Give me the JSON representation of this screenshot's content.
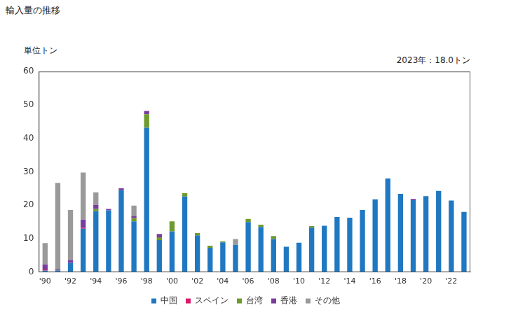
{
  "chart_data": {
    "type": "bar",
    "title": "輸入量の推移",
    "ylabel": "単位トン",
    "annotation": "2023年：18.0トン",
    "categories": [
      "'90",
      null,
      "'92",
      null,
      "'94",
      null,
      "'96",
      null,
      "'98",
      null,
      "'00",
      null,
      "'02",
      null,
      "'04",
      null,
      "'06",
      null,
      "'08",
      null,
      "'10",
      null,
      "'12",
      null,
      "'14",
      null,
      "'16",
      null,
      "'18",
      null,
      "'20",
      null,
      "'22",
      null
    ],
    "series": [
      {
        "name": "中国",
        "color": "#1f78c1",
        "values": [
          0.5,
          0.5,
          2.8,
          13.0,
          18.2,
          18.5,
          24.5,
          15.2,
          43.2,
          9.6,
          12.2,
          22.6,
          11.0,
          7.3,
          8.9,
          8.2,
          15.0,
          13.5,
          9.9,
          7.6,
          8.8,
          13.3,
          13.9,
          16.5,
          16.3,
          18.6,
          21.8,
          28.0,
          23.4,
          21.5,
          22.7,
          24.3,
          21.4,
          18.0
        ]
      },
      {
        "name": "スペイン",
        "color": "#d81b6a",
        "values": [
          0.3,
          0,
          0,
          0.3,
          0,
          0,
          0,
          0,
          0,
          0,
          0,
          0,
          0,
          0,
          0,
          0,
          0,
          0,
          0,
          0,
          0,
          0,
          0,
          0,
          0,
          0,
          0,
          0,
          0,
          0,
          0,
          0,
          0,
          0
        ]
      },
      {
        "name": "台湾",
        "color": "#6e9a2e",
        "values": [
          0,
          0,
          0,
          0,
          0.7,
          0,
          0,
          1.0,
          4.0,
          0.8,
          3.0,
          1.0,
          0.7,
          0.6,
          0.3,
          0,
          0.9,
          0.7,
          0.9,
          0,
          0,
          0.5,
          0,
          0,
          0,
          0,
          0,
          0,
          0,
          0,
          0,
          0,
          0,
          0
        ]
      },
      {
        "name": "香港",
        "color": "#7a3d9e",
        "values": [
          1.5,
          0.3,
          0.8,
          2.4,
          1.2,
          0.4,
          0.6,
          0.5,
          1.0,
          1.0,
          0,
          0,
          0,
          0,
          0,
          0,
          0,
          0,
          0,
          0,
          0,
          0,
          0,
          0,
          0,
          0,
          0,
          0,
          0,
          0.4,
          0,
          0,
          0,
          0
        ]
      },
      {
        "name": "その他",
        "color": "#9a9a9a",
        "values": [
          6.4,
          25.9,
          15.0,
          14.1,
          3.8,
          0,
          0,
          3.2,
          0,
          0,
          0,
          0,
          0,
          0,
          0,
          1.7,
          0,
          0,
          0,
          0,
          0,
          0,
          0,
          0,
          0,
          0,
          0,
          0,
          0,
          0,
          0,
          0,
          0,
          0
        ]
      }
    ],
    "ylim": [
      0,
      60
    ],
    "yticks": [
      0,
      10,
      20,
      30,
      40,
      50,
      60
    ],
    "stacked": true,
    "grid": false,
    "legend": "bottom"
  }
}
